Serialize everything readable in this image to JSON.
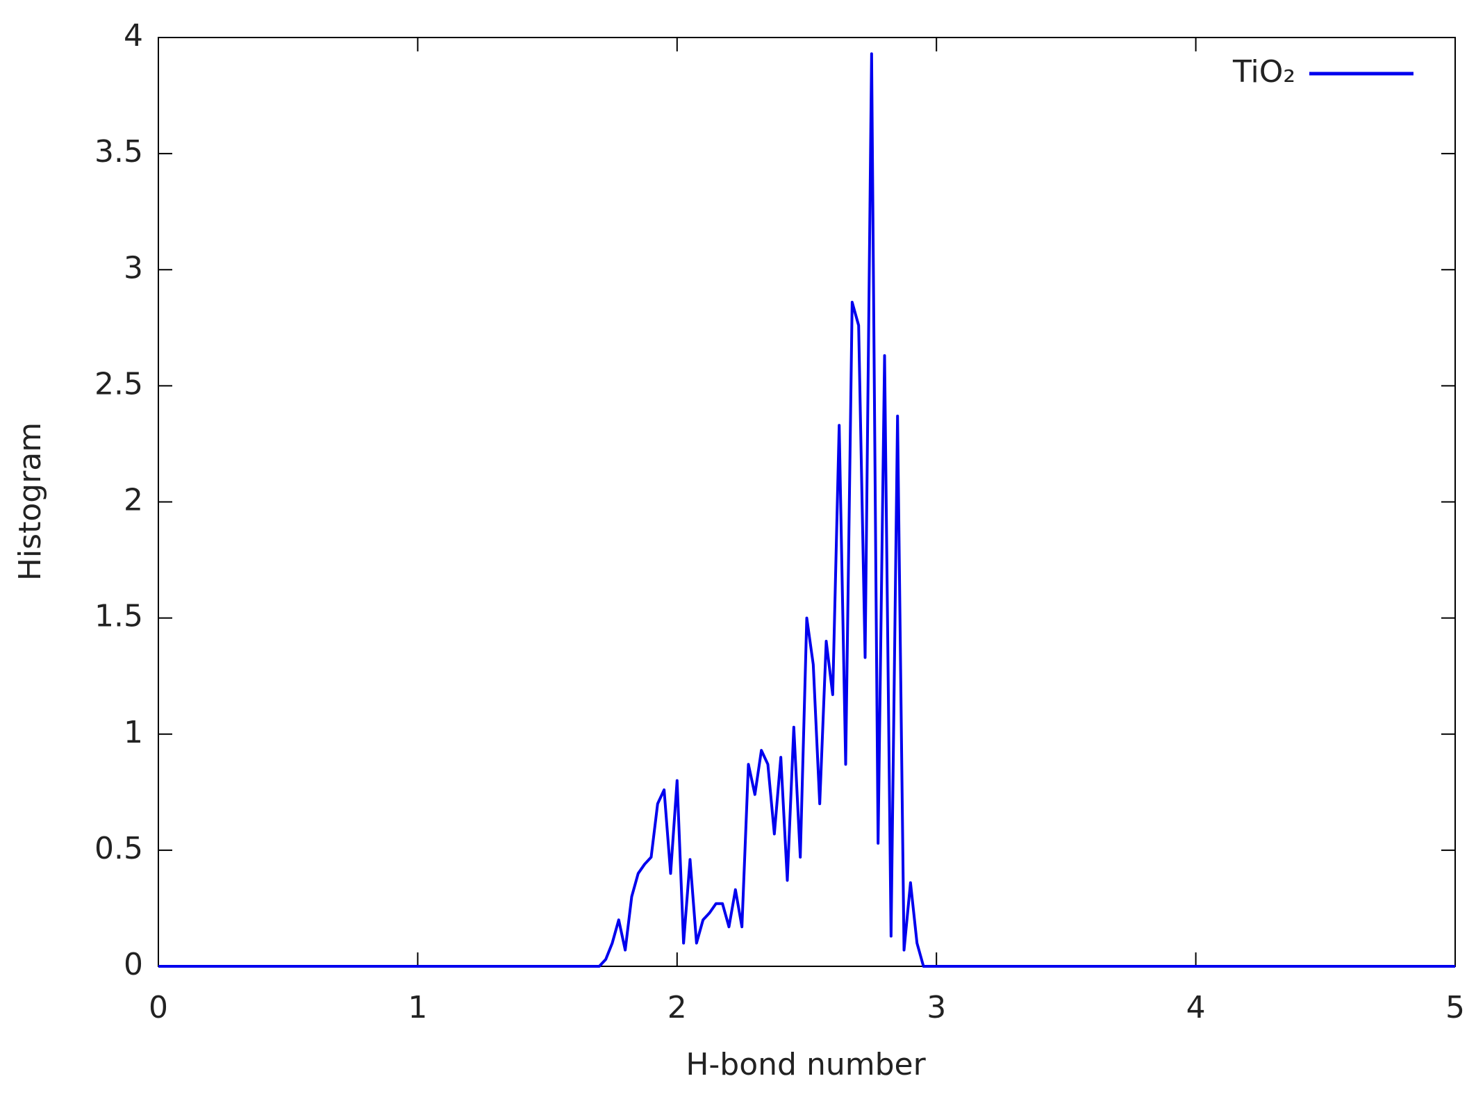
{
  "chart_data": {
    "type": "line",
    "x_label": "H-bond number",
    "y_label": "Histogram",
    "xlim": [
      0,
      5
    ],
    "xticks": [
      0,
      1,
      2,
      3,
      4,
      5
    ],
    "ylim": [
      0,
      4
    ],
    "yticks": [
      0,
      0.5,
      1,
      1.5,
      2,
      2.5,
      3,
      3.5,
      4
    ],
    "legend": "top-right",
    "series": [
      {
        "name": "TiO₂",
        "color": "#0000ee",
        "x": [
          0,
          1.7,
          1.725,
          1.75,
          1.775,
          1.8,
          1.825,
          1.85,
          1.875,
          1.9,
          1.925,
          1.95,
          1.975,
          2.0,
          2.025,
          2.05,
          2.075,
          2.1,
          2.125,
          2.15,
          2.175,
          2.2,
          2.225,
          2.25,
          2.275,
          2.3,
          2.325,
          2.35,
          2.375,
          2.4,
          2.425,
          2.45,
          2.475,
          2.5,
          2.525,
          2.55,
          2.575,
          2.6,
          2.625,
          2.65,
          2.675,
          2.7,
          2.725,
          2.75,
          2.775,
          2.8,
          2.825,
          2.85,
          2.875,
          2.9,
          2.925,
          2.95,
          5
        ],
        "values": [
          0,
          0,
          0.03,
          0.1,
          0.2,
          0.07,
          0.3,
          0.4,
          0.44,
          0.47,
          0.7,
          0.76,
          0.4,
          0.8,
          0.1,
          0.46,
          0.1,
          0.2,
          0.23,
          0.27,
          0.27,
          0.17,
          0.33,
          0.17,
          0.87,
          0.74,
          0.93,
          0.87,
          0.57,
          0.9,
          0.37,
          1.03,
          0.47,
          1.5,
          1.3,
          0.7,
          1.4,
          1.17,
          2.33,
          0.87,
          2.86,
          2.76,
          1.33,
          3.93,
          0.53,
          2.63,
          0.13,
          2.37,
          0.07,
          0.36,
          0.1,
          0,
          0
        ]
      }
    ]
  }
}
